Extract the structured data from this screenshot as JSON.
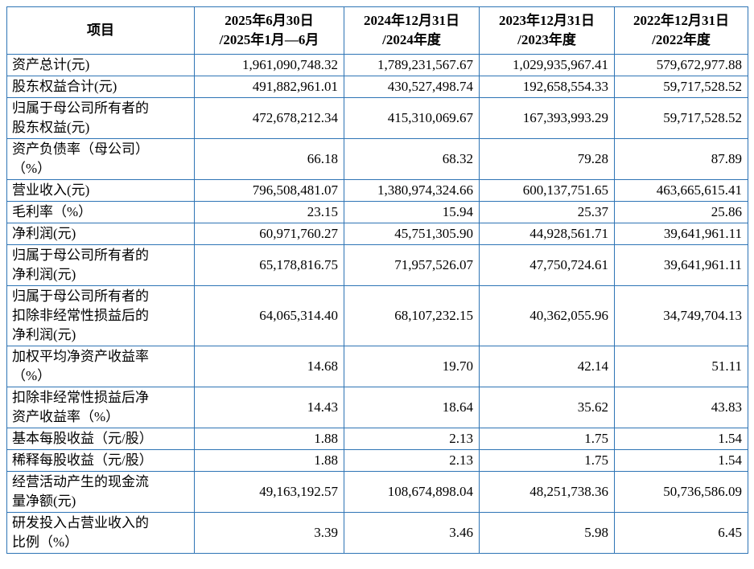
{
  "colors": {
    "border": "#2e74b5",
    "text": "#000000"
  },
  "table": {
    "header": {
      "item_label": "项目",
      "columns": [
        {
          "line1": "2025年6月30日",
          "line2": "/2025年1月—6月"
        },
        {
          "line1": "2024年12月31日",
          "line2": "/2024年度"
        },
        {
          "line1": "2023年12月31日",
          "line2": "/2023年度"
        },
        {
          "line1": "2022年12月31日",
          "line2": "/2022年度"
        }
      ]
    },
    "rows": [
      {
        "label": "资产总计(元)",
        "values": [
          "1,961,090,748.32",
          "1,789,231,567.67",
          "1,029,935,967.41",
          "579,672,977.88"
        ]
      },
      {
        "label": "股东权益合计(元)",
        "values": [
          "491,882,961.01",
          "430,527,498.74",
          "192,658,554.33",
          "59,717,528.52"
        ]
      },
      {
        "label": "归属于母公司所有者的\n股东权益(元)",
        "values": [
          "472,678,212.34",
          "415,310,069.67",
          "167,393,993.29",
          "59,717,528.52"
        ]
      },
      {
        "label": "资产负债率（母公司）\n（%）",
        "values": [
          "66.18",
          "68.32",
          "79.28",
          "87.89"
        ]
      },
      {
        "label": "营业收入(元)",
        "values": [
          "796,508,481.07",
          "1,380,974,324.66",
          "600,137,751.65",
          "463,665,615.41"
        ]
      },
      {
        "label": "毛利率（%）",
        "values": [
          "23.15",
          "15.94",
          "25.37",
          "25.86"
        ]
      },
      {
        "label": "净利润(元)",
        "values": [
          "60,971,760.27",
          "45,751,305.90",
          "44,928,561.71",
          "39,641,961.11"
        ]
      },
      {
        "label": "归属于母公司所有者的\n净利润(元)",
        "values": [
          "65,178,816.75",
          "71,957,526.07",
          "47,750,724.61",
          "39,641,961.11"
        ]
      },
      {
        "label": "归属于母公司所有者的\n扣除非经常性损益后的\n净利润(元)",
        "values": [
          "64,065,314.40",
          "68,107,232.15",
          "40,362,055.96",
          "34,749,704.13"
        ]
      },
      {
        "label": "加权平均净资产收益率\n（%）",
        "values": [
          "14.68",
          "19.70",
          "42.14",
          "51.11"
        ]
      },
      {
        "label": "扣除非经常性损益后净\n资产收益率（%）",
        "values": [
          "14.43",
          "18.64",
          "35.62",
          "43.83"
        ]
      },
      {
        "label": "基本每股收益（元/股）",
        "values": [
          "1.88",
          "2.13",
          "1.75",
          "1.54"
        ]
      },
      {
        "label": "稀释每股收益（元/股）",
        "values": [
          "1.88",
          "2.13",
          "1.75",
          "1.54"
        ]
      },
      {
        "label": "经营活动产生的现金流\n量净额(元)",
        "values": [
          "49,163,192.57",
          "108,674,898.04",
          "48,251,738.36",
          "50,736,586.09"
        ]
      },
      {
        "label": "研发投入占营业收入的\n比例（%）",
        "values": [
          "3.39",
          "3.46",
          "5.98",
          "6.45"
        ]
      }
    ]
  }
}
